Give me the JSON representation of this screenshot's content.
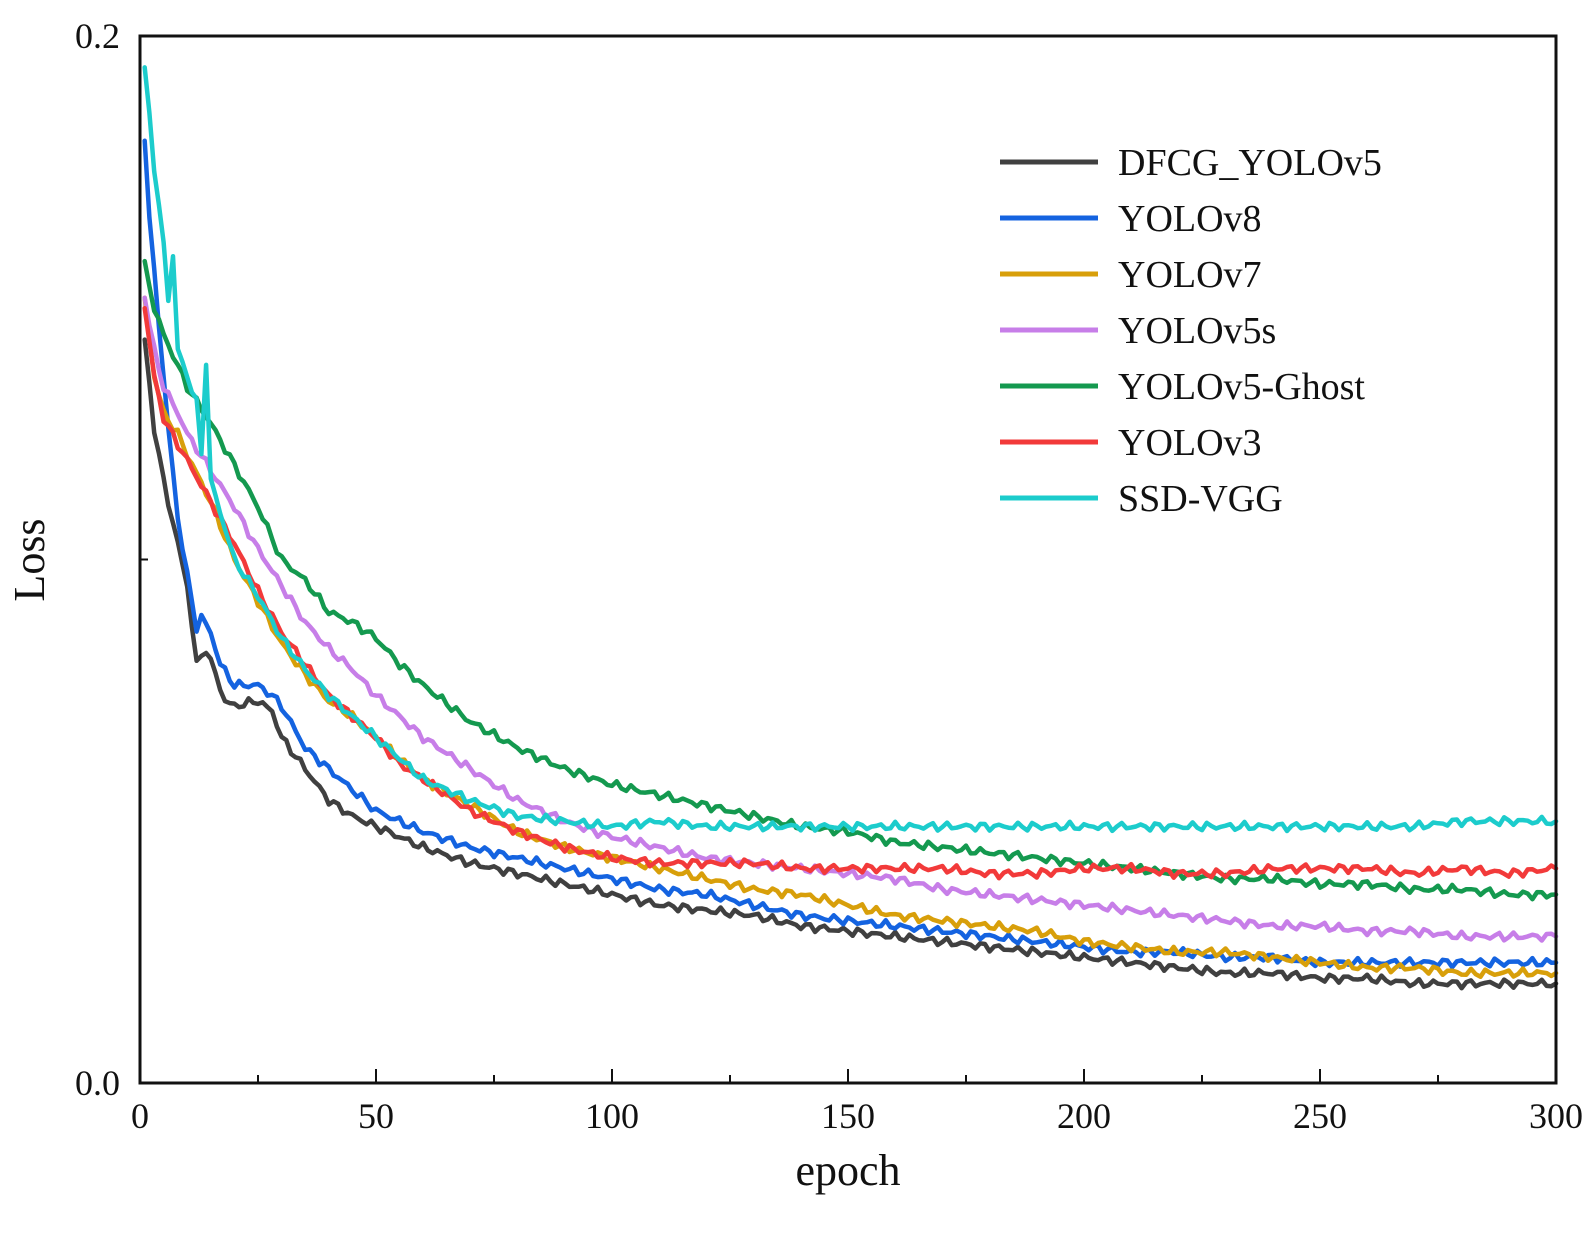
{
  "chart_data": {
    "type": "line",
    "xlabel": "epoch",
    "ylabel": "Loss",
    "xlim": [
      0,
      300
    ],
    "ylim": [
      0.0,
      0.2
    ],
    "x_ticks": [
      0,
      50,
      100,
      150,
      200,
      250,
      300
    ],
    "x_tick_labels": [
      "0",
      "50",
      "100",
      "150",
      "200",
      "250",
      "300"
    ],
    "y_ticks": [
      0.0,
      0.2
    ],
    "y_tick_labels": [
      "0.0",
      "0.2"
    ],
    "legend_position": "top-right",
    "grid": false,
    "series": [
      {
        "name": "DFCG_YOLOv5",
        "color": "#404040",
        "points": [
          [
            1,
            0.142
          ],
          [
            3,
            0.125
          ],
          [
            5,
            0.115
          ],
          [
            8,
            0.103
          ],
          [
            10,
            0.095
          ],
          [
            12,
            0.08
          ],
          [
            14,
            0.083
          ],
          [
            16,
            0.078
          ],
          [
            18,
            0.073
          ],
          [
            20,
            0.072
          ],
          [
            25,
            0.073
          ],
          [
            28,
            0.071
          ],
          [
            30,
            0.066
          ],
          [
            35,
            0.06
          ],
          [
            40,
            0.054
          ],
          [
            45,
            0.051
          ],
          [
            50,
            0.049
          ],
          [
            55,
            0.047
          ],
          [
            60,
            0.045
          ],
          [
            70,
            0.042
          ],
          [
            80,
            0.04
          ],
          [
            90,
            0.038
          ],
          [
            100,
            0.036
          ],
          [
            110,
            0.034
          ],
          [
            120,
            0.033
          ],
          [
            130,
            0.032
          ],
          [
            140,
            0.03
          ],
          [
            150,
            0.029
          ],
          [
            160,
            0.028
          ],
          [
            170,
            0.027
          ],
          [
            180,
            0.026
          ],
          [
            190,
            0.025
          ],
          [
            200,
            0.024
          ],
          [
            210,
            0.023
          ],
          [
            220,
            0.022
          ],
          [
            230,
            0.021
          ],
          [
            240,
            0.021
          ],
          [
            250,
            0.02
          ],
          [
            260,
            0.02
          ],
          [
            270,
            0.019
          ],
          [
            280,
            0.019
          ],
          [
            290,
            0.019
          ],
          [
            300,
            0.019
          ]
        ]
      },
      {
        "name": "YOLOv8",
        "color": "#1463e0",
        "points": [
          [
            1,
            0.18
          ],
          [
            2,
            0.165
          ],
          [
            4,
            0.145
          ],
          [
            6,
            0.125
          ],
          [
            8,
            0.108
          ],
          [
            10,
            0.097
          ],
          [
            12,
            0.087
          ],
          [
            13,
            0.089
          ],
          [
            15,
            0.086
          ],
          [
            17,
            0.08
          ],
          [
            20,
            0.076
          ],
          [
            25,
            0.076
          ],
          [
            28,
            0.074
          ],
          [
            30,
            0.072
          ],
          [
            35,
            0.064
          ],
          [
            40,
            0.06
          ],
          [
            45,
            0.056
          ],
          [
            50,
            0.052
          ],
          [
            55,
            0.05
          ],
          [
            60,
            0.048
          ],
          [
            70,
            0.045
          ],
          [
            80,
            0.043
          ],
          [
            90,
            0.041
          ],
          [
            100,
            0.039
          ],
          [
            110,
            0.037
          ],
          [
            120,
            0.036
          ],
          [
            130,
            0.034
          ],
          [
            140,
            0.032
          ],
          [
            150,
            0.031
          ],
          [
            160,
            0.03
          ],
          [
            170,
            0.029
          ],
          [
            180,
            0.028
          ],
          [
            190,
            0.027
          ],
          [
            200,
            0.026
          ],
          [
            210,
            0.025
          ],
          [
            220,
            0.025
          ],
          [
            230,
            0.024
          ],
          [
            240,
            0.024
          ],
          [
            250,
            0.023
          ],
          [
            260,
            0.023
          ],
          [
            270,
            0.023
          ],
          [
            280,
            0.023
          ],
          [
            290,
            0.023
          ],
          [
            300,
            0.023
          ]
        ]
      },
      {
        "name": "YOLOv7",
        "color": "#d89f0a",
        "points": [
          [
            1,
            0.15
          ],
          [
            3,
            0.135
          ],
          [
            5,
            0.128
          ],
          [
            8,
            0.124
          ],
          [
            10,
            0.12
          ],
          [
            15,
            0.111
          ],
          [
            20,
            0.1
          ],
          [
            25,
            0.092
          ],
          [
            30,
            0.084
          ],
          [
            35,
            0.078
          ],
          [
            40,
            0.073
          ],
          [
            45,
            0.07
          ],
          [
            50,
            0.066
          ],
          [
            55,
            0.062
          ],
          [
            60,
            0.058
          ],
          [
            70,
            0.053
          ],
          [
            80,
            0.048
          ],
          [
            90,
            0.045
          ],
          [
            100,
            0.043
          ],
          [
            110,
            0.041
          ],
          [
            120,
            0.039
          ],
          [
            130,
            0.037
          ],
          [
            140,
            0.036
          ],
          [
            150,
            0.034
          ],
          [
            160,
            0.032
          ],
          [
            170,
            0.031
          ],
          [
            180,
            0.03
          ],
          [
            190,
            0.029
          ],
          [
            200,
            0.027
          ],
          [
            210,
            0.026
          ],
          [
            220,
            0.025
          ],
          [
            230,
            0.025
          ],
          [
            240,
            0.024
          ],
          [
            250,
            0.023
          ],
          [
            260,
            0.022
          ],
          [
            270,
            0.022
          ],
          [
            280,
            0.021
          ],
          [
            290,
            0.021
          ],
          [
            300,
            0.021
          ]
        ]
      },
      {
        "name": "YOLOv5s",
        "color": "#c77ee8",
        "points": [
          [
            1,
            0.15
          ],
          [
            3,
            0.14
          ],
          [
            5,
            0.133
          ],
          [
            8,
            0.128
          ],
          [
            10,
            0.124
          ],
          [
            15,
            0.117
          ],
          [
            20,
            0.11
          ],
          [
            25,
            0.102
          ],
          [
            30,
            0.095
          ],
          [
            35,
            0.088
          ],
          [
            40,
            0.083
          ],
          [
            45,
            0.079
          ],
          [
            50,
            0.074
          ],
          [
            55,
            0.07
          ],
          [
            60,
            0.066
          ],
          [
            70,
            0.06
          ],
          [
            80,
            0.054
          ],
          [
            90,
            0.05
          ],
          [
            100,
            0.047
          ],
          [
            110,
            0.045
          ],
          [
            120,
            0.043
          ],
          [
            130,
            0.042
          ],
          [
            140,
            0.041
          ],
          [
            150,
            0.04
          ],
          [
            160,
            0.039
          ],
          [
            170,
            0.037
          ],
          [
            180,
            0.036
          ],
          [
            190,
            0.035
          ],
          [
            200,
            0.034
          ],
          [
            210,
            0.033
          ],
          [
            220,
            0.032
          ],
          [
            230,
            0.031
          ],
          [
            240,
            0.03
          ],
          [
            250,
            0.03
          ],
          [
            260,
            0.029
          ],
          [
            270,
            0.029
          ],
          [
            280,
            0.028
          ],
          [
            290,
            0.028
          ],
          [
            300,
            0.028
          ]
        ]
      },
      {
        "name": "YOLOv5-Ghost",
        "color": "#14994f",
        "points": [
          [
            1,
            0.157
          ],
          [
            3,
            0.148
          ],
          [
            5,
            0.143
          ],
          [
            8,
            0.137
          ],
          [
            10,
            0.133
          ],
          [
            15,
            0.126
          ],
          [
            20,
            0.118
          ],
          [
            25,
            0.11
          ],
          [
            30,
            0.1
          ],
          [
            35,
            0.096
          ],
          [
            40,
            0.09
          ],
          [
            45,
            0.088
          ],
          [
            50,
            0.085
          ],
          [
            55,
            0.08
          ],
          [
            60,
            0.076
          ],
          [
            70,
            0.069
          ],
          [
            80,
            0.064
          ],
          [
            90,
            0.06
          ],
          [
            100,
            0.057
          ],
          [
            110,
            0.055
          ],
          [
            120,
            0.053
          ],
          [
            130,
            0.051
          ],
          [
            140,
            0.049
          ],
          [
            150,
            0.048
          ],
          [
            160,
            0.046
          ],
          [
            170,
            0.045
          ],
          [
            180,
            0.044
          ],
          [
            190,
            0.043
          ],
          [
            200,
            0.042
          ],
          [
            210,
            0.041
          ],
          [
            220,
            0.04
          ],
          [
            230,
            0.039
          ],
          [
            240,
            0.039
          ],
          [
            250,
            0.038
          ],
          [
            260,
            0.038
          ],
          [
            270,
            0.037
          ],
          [
            280,
            0.037
          ],
          [
            290,
            0.036
          ],
          [
            300,
            0.036
          ]
        ]
      },
      {
        "name": "YOLOv3",
        "color": "#f23a3a",
        "points": [
          [
            1,
            0.148
          ],
          [
            3,
            0.135
          ],
          [
            5,
            0.127
          ],
          [
            8,
            0.122
          ],
          [
            10,
            0.119
          ],
          [
            15,
            0.111
          ],
          [
            20,
            0.103
          ],
          [
            25,
            0.094
          ],
          [
            30,
            0.086
          ],
          [
            35,
            0.08
          ],
          [
            40,
            0.074
          ],
          [
            45,
            0.07
          ],
          [
            50,
            0.066
          ],
          [
            55,
            0.061
          ],
          [
            60,
            0.058
          ],
          [
            70,
            0.052
          ],
          [
            80,
            0.048
          ],
          [
            90,
            0.045
          ],
          [
            100,
            0.043
          ],
          [
            110,
            0.042
          ],
          [
            120,
            0.042
          ],
          [
            130,
            0.042
          ],
          [
            140,
            0.041
          ],
          [
            150,
            0.041
          ],
          [
            160,
            0.041
          ],
          [
            170,
            0.041
          ],
          [
            180,
            0.04
          ],
          [
            190,
            0.04
          ],
          [
            200,
            0.041
          ],
          [
            210,
            0.041
          ],
          [
            220,
            0.04
          ],
          [
            230,
            0.04
          ],
          [
            240,
            0.041
          ],
          [
            250,
            0.041
          ],
          [
            260,
            0.041
          ],
          [
            270,
            0.04
          ],
          [
            280,
            0.041
          ],
          [
            290,
            0.04
          ],
          [
            300,
            0.041
          ]
        ]
      },
      {
        "name": "SSD-VGG",
        "color": "#1ccccc",
        "points": [
          [
            1,
            0.194
          ],
          [
            2,
            0.185
          ],
          [
            3,
            0.175
          ],
          [
            5,
            0.16
          ],
          [
            6,
            0.15
          ],
          [
            7,
            0.158
          ],
          [
            8,
            0.14
          ],
          [
            10,
            0.135
          ],
          [
            12,
            0.13
          ],
          [
            13,
            0.12
          ],
          [
            14,
            0.138
          ],
          [
            15,
            0.115
          ],
          [
            20,
            0.1
          ],
          [
            25,
            0.093
          ],
          [
            30,
            0.085
          ],
          [
            35,
            0.079
          ],
          [
            40,
            0.074
          ],
          [
            45,
            0.07
          ],
          [
            50,
            0.066
          ],
          [
            55,
            0.062
          ],
          [
            60,
            0.058
          ],
          [
            70,
            0.054
          ],
          [
            80,
            0.051
          ],
          [
            90,
            0.05
          ],
          [
            100,
            0.049
          ],
          [
            110,
            0.05
          ],
          [
            120,
            0.049
          ],
          [
            130,
            0.049
          ],
          [
            140,
            0.049
          ],
          [
            150,
            0.049
          ],
          [
            160,
            0.049
          ],
          [
            170,
            0.049
          ],
          [
            180,
            0.049
          ],
          [
            190,
            0.049
          ],
          [
            200,
            0.049
          ],
          [
            210,
            0.049
          ],
          [
            220,
            0.049
          ],
          [
            230,
            0.049
          ],
          [
            240,
            0.049
          ],
          [
            250,
            0.049
          ],
          [
            260,
            0.049
          ],
          [
            270,
            0.049
          ],
          [
            280,
            0.05
          ],
          [
            290,
            0.05
          ],
          [
            300,
            0.05
          ]
        ]
      }
    ]
  }
}
